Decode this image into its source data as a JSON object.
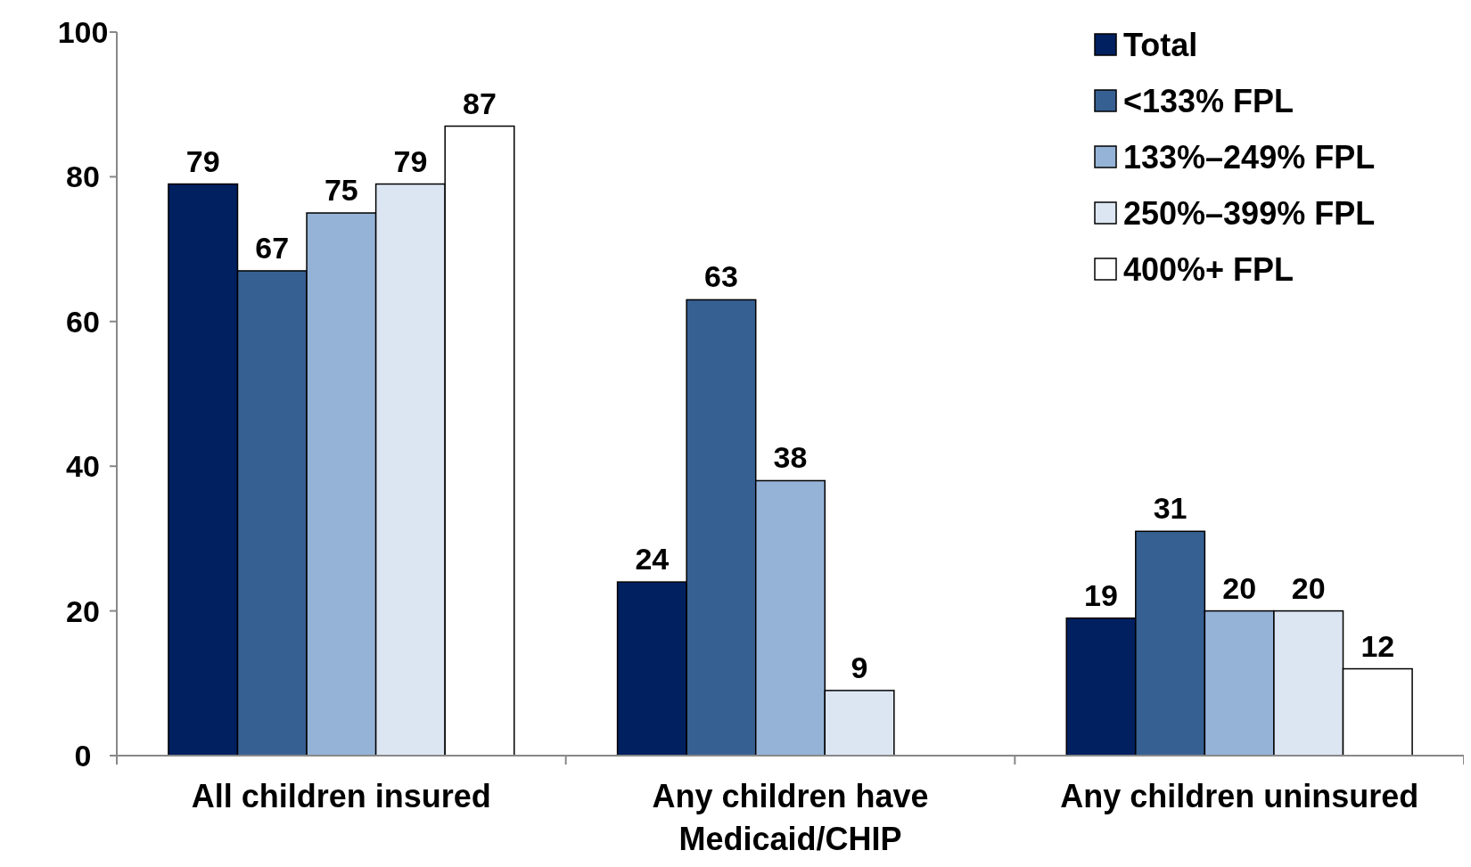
{
  "chart_data": {
    "type": "bar",
    "categories": [
      "All children insured",
      "Any children have Medicaid/CHIP",
      "Any children uninsured"
    ],
    "series": [
      {
        "name": "Total",
        "color": "#002060",
        "values": [
          79,
          24,
          19
        ]
      },
      {
        "name": "<133% FPL",
        "color": "#376092",
        "values": [
          67,
          63,
          31
        ]
      },
      {
        "name": "133%–249% FPL",
        "color": "#95b3d7",
        "values": [
          75,
          38,
          20
        ]
      },
      {
        "name": "250%–399% FPL",
        "color": "#dce6f2",
        "values": [
          79,
          9,
          20
        ]
      },
      {
        "name": "400%+ FPL",
        "color": "#ffffff",
        "values": [
          87,
          null,
          12
        ]
      }
    ],
    "ylim": [
      0,
      100
    ],
    "yticks": [
      0,
      20,
      40,
      60,
      80,
      100
    ],
    "data_labels": true,
    "legend": "top right",
    "grid": false
  }
}
